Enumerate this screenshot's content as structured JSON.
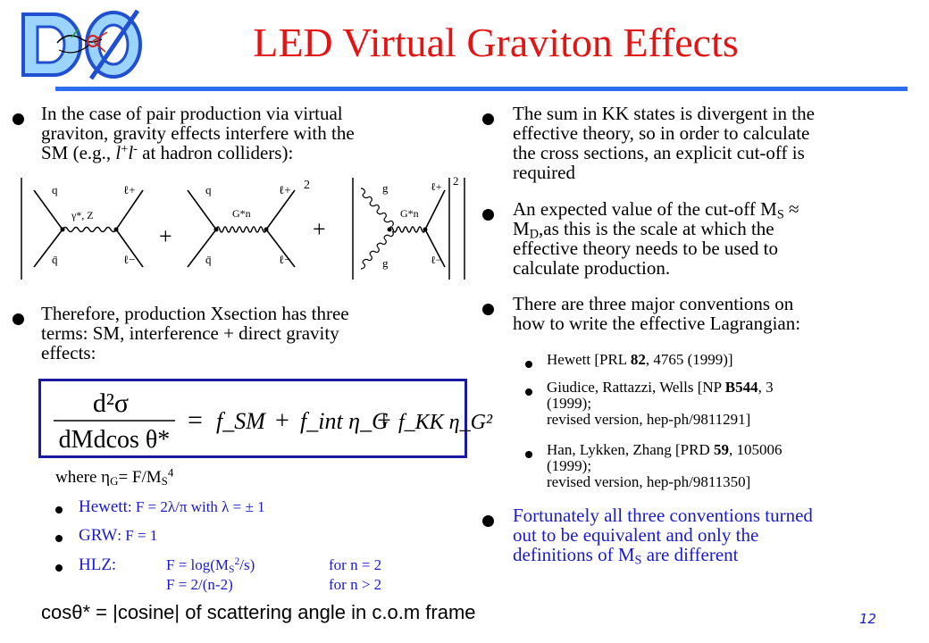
{
  "slide": {
    "title": "LED Virtual Graviton Effects",
    "page_number": "12",
    "logo_text": "DØ"
  },
  "left": {
    "bullet1": {
      "line1": "In the case of pair production via virtual",
      "line2": "graviton, gravity effects interfere with the",
      "line3_pre": "SM (e.g., ",
      "lep1": "l",
      "sup1": "+",
      "lep2": "l",
      "sup2": "-",
      "line3_post": " at hadron colliders):"
    },
    "diagrams": {
      "plus1": "+",
      "plus2": "+",
      "exponent": "2",
      "d1": {
        "q": "q",
        "qbar": "q̄",
        "lp": "ℓ+",
        "lm": "ℓ−",
        "prop": "γ*, Z"
      },
      "d2": {
        "q": "q",
        "qbar": "q̄",
        "lp": "ℓ+",
        "lm": "ℓ−",
        "prop": "G*n"
      },
      "d3": {
        "g1": "g",
        "g2": "g",
        "lp": "ℓ+",
        "lm": "ℓ−",
        "prop": "G*n"
      }
    },
    "bullet2": {
      "line1": "Therefore, production Xsection has three",
      "line2": "terms: SM, interference + direct gravity",
      "line3": "effects:"
    },
    "equation": {
      "num": "d²σ",
      "den": "dMdcos θ*",
      "eq": "=",
      "t1": "f_SM",
      "plus1": "+",
      "t2": "f_int η_G",
      "plus2": "+",
      "t3": "f_KK η_G²"
    },
    "where": {
      "pre": "where η",
      "sub": "G",
      "mid": "= F/M",
      "sub2": "S",
      "sup": "4"
    },
    "conventions": [
      {
        "name": "Hewett",
        "formula": ": F = 2λ/π with λ = ± 1"
      },
      {
        "name": "GRW",
        "formula": ":  F = 1"
      },
      {
        "name": "HLZ:",
        "formula": "F = log(M",
        "formula_post": "/s)",
        "cond1": "for n = 2",
        "formula2": "F = 2/(n-2)",
        "cond2": "for n > 2"
      }
    ],
    "footer": "cosθ* = |cosine| of scattering angle in c.o.m frame"
  },
  "right": {
    "bullet1": [
      "The sum in KK states is divergent in the",
      "effective theory, so in order to calculate",
      "the cross sections, an explicit cut-off is",
      "required"
    ],
    "bullet2": {
      "line1_pre": "An expected value of the cut-off M",
      "line1_sub": "S",
      "line1_post": " ≈",
      "line2_pre": "M",
      "line2_sub": "D",
      "line2_post": ",as this is the scale at which the",
      "line3": "effective theory needs to be used to",
      "line4": "calculate production."
    },
    "bullet3": [
      "There are three major conventions on",
      "how to write the effective Lagrangian:"
    ],
    "refs": [
      {
        "lines": [
          "Hewett [PRL ",
          "82",
          ", 4765 (1999)]"
        ]
      },
      {
        "l1_pre": "Giudice, Rattazzi, Wells [NP ",
        "l1_bold": "B544",
        "l1_post": ", 3",
        "l2": "(1999);",
        "l3": "revised version, hep-ph/9811291]"
      },
      {
        "l1_pre": "Han, Lykken, Zhang [PRD ",
        "l1_bold": "59",
        "l1_post": ", 105006",
        "l2": "(1999);",
        "l3": "revised version, hep-ph/9811350]"
      }
    ],
    "bullet4": {
      "line1": "Fortunately all three conventions turned",
      "line2": "out to be equivalent and only the",
      "line3_pre": "definitions of M",
      "line3_sub": "S",
      "line3_post": " are different"
    }
  }
}
